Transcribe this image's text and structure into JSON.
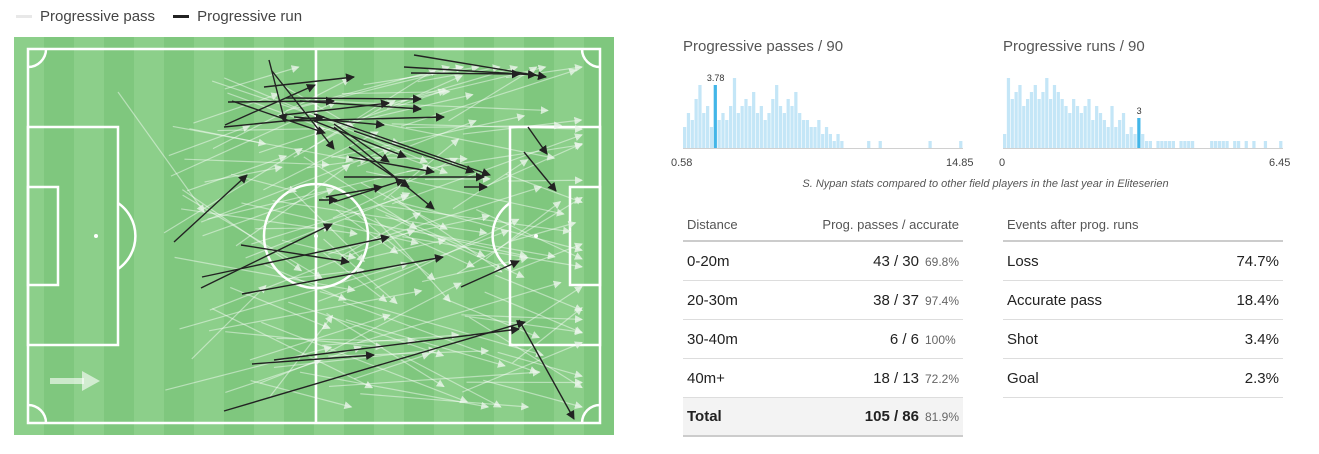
{
  "legend": {
    "pass_label": "Progressive pass",
    "run_label": "Progressive run",
    "pass_color": "#e8e8e8",
    "run_color": "#222222"
  },
  "colors": {
    "pitch_light": "#8ccf8a",
    "pitch_dark": "#7fc77e",
    "bar": "#c4e6f7",
    "bar_highlight": "#43b6e8"
  },
  "pitch_icon": "arrow-right-icon",
  "caption": "S. Nypan stats compared to other field players in the last year in Eliteserien",
  "chart_data": [
    {
      "type": "bar",
      "title": "Progressive passes / 90",
      "xlim": [
        0.58,
        14.85
      ],
      "min_label": "0.58",
      "max_label": "14.85",
      "highlight_index": 8,
      "highlight_label": "3.78",
      "values": [
        3,
        5,
        4,
        7,
        9,
        5,
        6,
        3,
        9,
        4,
        5,
        4,
        6,
        10,
        5,
        6,
        7,
        6,
        8,
        5,
        6,
        4,
        5,
        7,
        9,
        6,
        5,
        7,
        6,
        8,
        5,
        4,
        4,
        3,
        3,
        4,
        2,
        3,
        2,
        1,
        2,
        1,
        0,
        0,
        0,
        0,
        0,
        0,
        1,
        0,
        0,
        1,
        0,
        0,
        0,
        0,
        0,
        0,
        0,
        0,
        0,
        0,
        0,
        0,
        1,
        0,
        0,
        0,
        0,
        0,
        0,
        0,
        1
      ]
    },
    {
      "type": "bar",
      "title": "Progressive runs / 90",
      "xlim": [
        0,
        6.45
      ],
      "min_label": "0",
      "max_label": "6.45",
      "highlight_index": 35,
      "highlight_label": "3",
      "values": [
        2,
        10,
        7,
        8,
        9,
        6,
        7,
        8,
        9,
        7,
        8,
        10,
        7,
        9,
        8,
        7,
        6,
        5,
        7,
        6,
        5,
        6,
        7,
        4,
        6,
        5,
        4,
        3,
        6,
        3,
        4,
        5,
        2,
        3,
        2,
        2,
        2,
        1,
        1,
        0,
        1,
        1,
        1,
        1,
        1,
        0,
        1,
        1,
        1,
        1,
        0,
        0,
        0,
        0,
        1,
        1,
        1,
        1,
        1,
        0,
        1,
        1,
        0,
        1,
        0,
        1,
        0,
        0,
        1,
        0,
        0,
        0,
        1
      ]
    }
  ],
  "passes_table": {
    "header_left": "Distance",
    "header_right": "Prog. passes / accurate",
    "rows": [
      {
        "label": "0-20m",
        "value": "43 / 30",
        "pct": "69.8%"
      },
      {
        "label": "20-30m",
        "value": "38 / 37",
        "pct": "97.4%"
      },
      {
        "label": "30-40m",
        "value": "6 / 6",
        "pct": "100%"
      },
      {
        "label": "40m+",
        "value": "18 / 13",
        "pct": "72.2%"
      }
    ],
    "total": {
      "label": "Total",
      "value": "105 / 86",
      "pct": "81.9%"
    }
  },
  "runs_table": {
    "header_left": "Events after prog. runs",
    "rows": [
      {
        "label": "Loss",
        "value": "74.7%"
      },
      {
        "label": "Accurate pass",
        "value": "18.4%"
      },
      {
        "label": "Shot",
        "value": "3.4%"
      },
      {
        "label": "Goal",
        "value": "2.3%"
      }
    ]
  }
}
